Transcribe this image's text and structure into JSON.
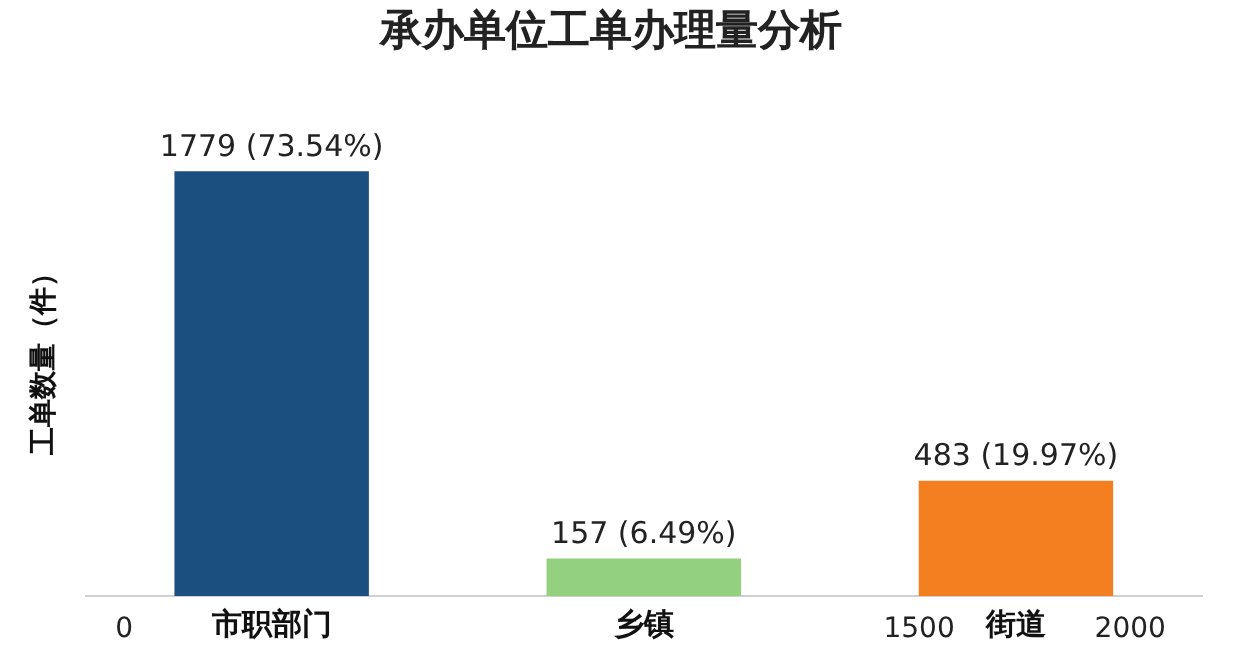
{
  "chart_data": {
    "type": "bar",
    "title": "承办单位工单办理量分析",
    "ylabel": "工单数量（件）",
    "categories": [
      "市职部门",
      "乡镇",
      "街道"
    ],
    "values": [
      1779,
      157,
      483
    ],
    "colors": [
      "#1b4f7f",
      "#93d07f",
      "#f47f20"
    ],
    "value_labels": [
      "1779 (73.54%)",
      "157 (6.49%)",
      "483 (19.97%)"
    ],
    "annotations": [
      "0",
      "1500",
      "2000"
    ],
    "grid": false,
    "legend": false
  }
}
